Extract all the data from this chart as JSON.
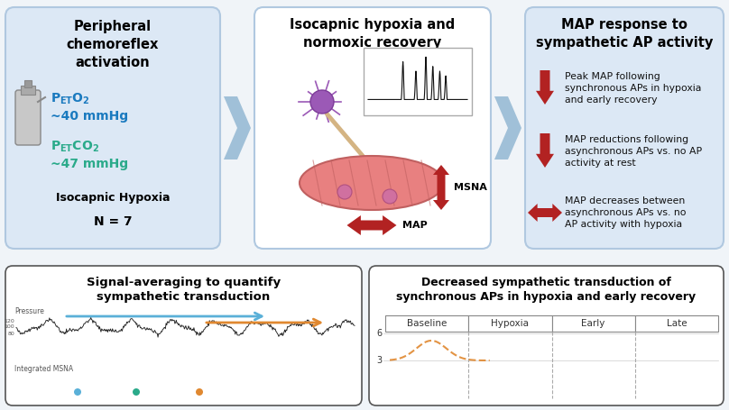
{
  "bg_color": "#f0f4f8",
  "box1_bg": "#dce8f5",
  "box2_bg": "#ffffff",
  "box3_bg": "#dce8f5",
  "box_edge": "#b0c8e0",
  "bottom_bg": "#ffffff",
  "bottom_edge": "#555555",
  "box1_title": "Peripheral\nchemoreflex\nactivation",
  "box2_title": "Isocapnic hypoxia and\nnormoxic recovery",
  "box3_title": "MAP response to\nsympathetic AP activity",
  "box3_items": [
    "Peak MAP following\nsynchronous APs in hypoxia\nand early recovery",
    "MAP reductions following\nasynchronous APs vs. no AP\nactivity at rest",
    "MAP decreases between\nasynchronous APs vs. no\nAP activity with hypoxia"
  ],
  "peto2_color": "#1a7abf",
  "petco2_color": "#2aaa8a",
  "arrow_red": "#b22222",
  "arrow_chevron": "#a0c0d8",
  "arrow_blue": "#5ab0d8",
  "arrow_orange": "#e08830",
  "dot_colors": [
    "#5ab0d8",
    "#2aaa8a",
    "#e08830"
  ],
  "bottom_left_title": "Signal-averaging to quantify\nsympathetic transduction",
  "bottom_right_title": "Decreased sympathetic transduction of\nsynchronous APs in hypoxia and early recovery",
  "bottom_right_sections": [
    "Baseline",
    "Hypoxia",
    "Early",
    "Late"
  ],
  "curve_color": "#e08830"
}
